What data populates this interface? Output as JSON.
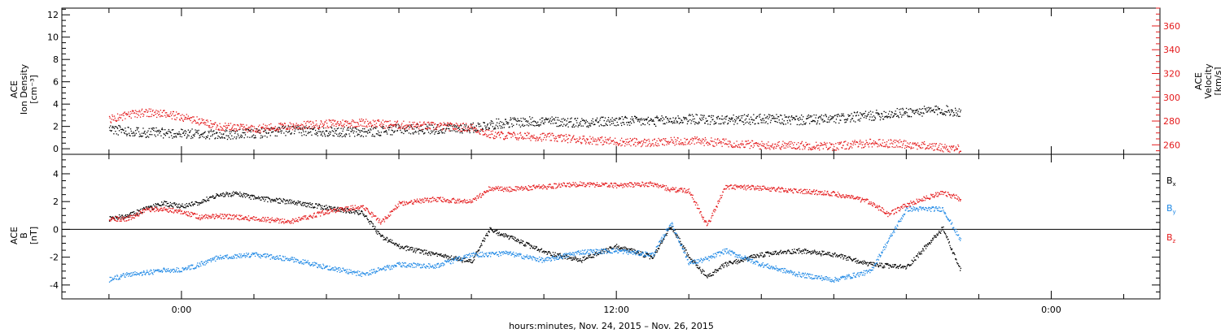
{
  "chart_data": [
    {
      "type": "scatter",
      "panel": "top",
      "ylabel_lines": [
        "ACE",
        "Ion Density",
        "[cm⁻³]"
      ],
      "ylim": [
        -0.5,
        12.6
      ],
      "yticks": [
        0,
        2,
        4,
        6,
        8,
        10,
        12
      ],
      "y2label_lines": [
        "ACE",
        "Velocity",
        "[km/s]"
      ],
      "y2lim": [
        252,
        375
      ],
      "y2ticks": [
        260,
        280,
        300,
        320,
        340,
        360
      ],
      "series": [
        {
          "axis": "left",
          "color": "#000000",
          "x": [
            -2.0,
            -1.0,
            0.0,
            1.0,
            2.0,
            3.0,
            4.0,
            5.0,
            6.0,
            7.0,
            8.0,
            8.5,
            9.0,
            10.0,
            11.0,
            12.0,
            13.0,
            14.0,
            15.0,
            16.0,
            17.0,
            18.0,
            19.0,
            20.0,
            21.0,
            21.5
          ],
          "values": [
            1.8,
            1.5,
            1.4,
            1.3,
            1.4,
            1.7,
            1.6,
            1.5,
            1.8,
            1.8,
            1.9,
            2.2,
            2.4,
            2.5,
            2.4,
            2.5,
            2.5,
            2.7,
            2.6,
            2.7,
            2.6,
            2.7,
            3.0,
            3.3,
            3.5,
            3.3
          ]
        },
        {
          "axis": "right",
          "color": "#e41a1c",
          "x": [
            -2.0,
            -1.0,
            0.0,
            1.0,
            2.0,
            3.0,
            4.0,
            5.0,
            6.0,
            7.0,
            8.0,
            8.5,
            9.0,
            10.0,
            11.0,
            12.0,
            13.0,
            14.0,
            15.0,
            16.0,
            17.0,
            18.0,
            19.0,
            20.0,
            21.0,
            21.5
          ],
          "values": [
            282,
            288,
            284,
            276,
            274,
            276,
            278,
            279,
            277,
            276,
            275,
            269,
            268,
            267,
            265,
            263,
            262,
            264,
            262,
            260,
            260,
            259,
            262,
            261,
            258,
            257
          ]
        }
      ]
    },
    {
      "type": "scatter",
      "panel": "bottom",
      "ylabel_lines": [
        "ACE",
        "B",
        "[nT]"
      ],
      "ylim": [
        -5.0,
        5.4
      ],
      "yticks": [
        -4,
        -2,
        0,
        2,
        4
      ],
      "zero_line": true,
      "series": [
        {
          "name": "Bx",
          "color": "#000000",
          "x": [
            -2.0,
            -1.5,
            -1.0,
            -0.5,
            0.0,
            0.5,
            1.0,
            1.5,
            2.0,
            3.0,
            4.0,
            5.0,
            5.5,
            6.0,
            7.0,
            8.0,
            8.5,
            9.0,
            10.0,
            11.0,
            12.0,
            13.0,
            13.5,
            14.0,
            14.5,
            15.0,
            16.0,
            17.0,
            18.0,
            19.0,
            20.0,
            21.0,
            21.5
          ],
          "values": [
            0.8,
            1.0,
            1.5,
            1.9,
            1.7,
            2.0,
            2.5,
            2.6,
            2.3,
            2.0,
            1.6,
            1.2,
            -0.5,
            -1.2,
            -1.8,
            -2.3,
            0.0,
            -0.5,
            -1.6,
            -2.2,
            -1.2,
            -2.0,
            0.3,
            -2.0,
            -3.4,
            -2.5,
            -1.8,
            -1.5,
            -1.8,
            -2.5,
            -2.7,
            0.1,
            -3.0
          ]
        },
        {
          "name": "By",
          "color": "#1e88e5",
          "x": [
            -2.0,
            -1.5,
            -1.0,
            -0.5,
            0.0,
            0.5,
            1.0,
            2.0,
            3.0,
            4.0,
            5.0,
            6.0,
            7.0,
            8.0,
            9.0,
            10.0,
            11.0,
            12.0,
            13.0,
            13.5,
            14.0,
            14.5,
            15.0,
            16.0,
            17.0,
            18.0,
            19.0,
            20.0,
            21.0,
            21.5
          ],
          "values": [
            -3.6,
            -3.2,
            -3.1,
            -2.9,
            -2.9,
            -2.5,
            -2.0,
            -1.8,
            -2.1,
            -2.7,
            -3.2,
            -2.5,
            -2.6,
            -1.8,
            -1.7,
            -2.2,
            -1.6,
            -1.5,
            -1.8,
            0.5,
            -2.4,
            -2.1,
            -1.5,
            -2.5,
            -3.2,
            -3.6,
            -3.0,
            1.5,
            1.5,
            -0.8
          ]
        },
        {
          "name": "Bz",
          "color": "#e41a1c",
          "x": [
            -2.0,
            -1.5,
            -1.0,
            -0.5,
            0.0,
            0.5,
            1.0,
            2.0,
            3.0,
            4.0,
            5.0,
            5.5,
            6.0,
            7.0,
            8.0,
            8.5,
            9.0,
            10.0,
            11.0,
            12.0,
            13.0,
            13.5,
            14.0,
            14.5,
            15.0,
            16.0,
            17.0,
            18.0,
            19.0,
            19.5,
            20.0,
            21.0,
            21.5
          ],
          "values": [
            0.8,
            0.8,
            1.4,
            1.5,
            1.3,
            0.9,
            1.0,
            0.8,
            0.6,
            1.3,
            1.7,
            0.5,
            1.9,
            2.2,
            2.0,
            3.0,
            2.9,
            3.1,
            3.3,
            3.2,
            3.3,
            2.9,
            2.8,
            0.3,
            3.1,
            3.0,
            2.8,
            2.6,
            2.0,
            1.1,
            1.8,
            2.7,
            2.2
          ]
        }
      ]
    }
  ],
  "x_axis": {
    "range_hours": [
      -3.3,
      27.0
    ],
    "tick_labels": [
      {
        "hour": 0,
        "label": "0:00"
      },
      {
        "hour": 12,
        "label": "12:00"
      },
      {
        "hour": 24,
        "label": "0:00"
      }
    ],
    "minor_step_hours": 2,
    "title": "hours:minutes, Nov. 24, 2015 – Nov. 26, 2015"
  },
  "legend": [
    {
      "main": "B",
      "sub": "x",
      "color": "#000000"
    },
    {
      "main": "B",
      "sub": "y",
      "color": "#1e88e5"
    },
    {
      "main": "B",
      "sub": "z",
      "color": "#e41a1c"
    }
  ]
}
